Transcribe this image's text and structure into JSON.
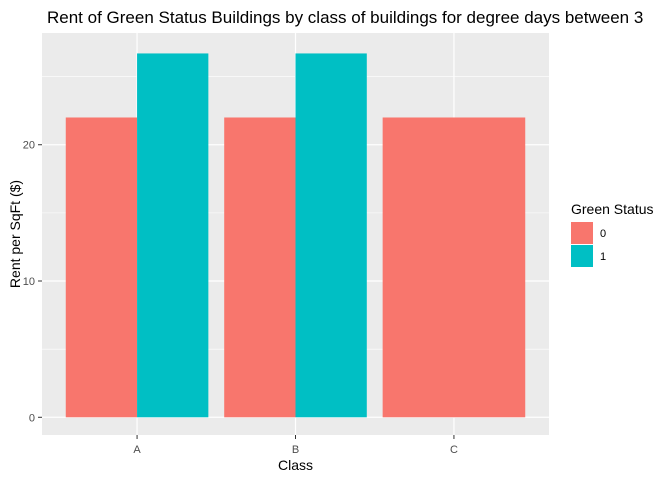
{
  "chart_data": {
    "type": "bar",
    "title": "Rent of Green Status Buildings by class of buildings for degree days between 3",
    "xlabel": "Class",
    "ylabel": "Rent per SqFt ($)",
    "categories": [
      "A",
      "B",
      "C"
    ],
    "series": [
      {
        "name": "0",
        "values": [
          22,
          22,
          22
        ],
        "color": "#F8766D"
      },
      {
        "name": "1",
        "values": [
          26.7,
          26.7,
          null
        ],
        "color": "#00BFC4"
      }
    ],
    "ylim": [
      -1.3,
      28.2
    ],
    "yticks": [
      0,
      10,
      20
    ],
    "ytick_labels": [
      "0",
      "10",
      "20"
    ],
    "grid": true,
    "legend": {
      "title": "Green Status",
      "placement": "right"
    },
    "panel_color": "#EBEBEB",
    "grid_color": "#FFFFFF"
  }
}
